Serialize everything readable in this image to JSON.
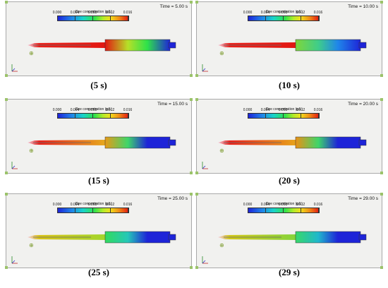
{
  "legend": {
    "title": "Dye concentration (g/L)",
    "ticks": [
      "0.000",
      "0.004",
      "0.008",
      "0.012",
      "0.016"
    ]
  },
  "panels": [
    {
      "time": "Time = 5.00 s",
      "caption": "(5 s)",
      "nozzle": "#e8201a",
      "left": "#e21812",
      "midA": "#b6e028",
      "midB": "#2ee24a",
      "right": "#e21812"
    },
    {
      "time": "Time = 10.00 s",
      "caption": "(10 s)",
      "nozzle": "#e8201a",
      "left": "#7ed63a",
      "midA": "#3fcd8a",
      "midB": "#1f86ea",
      "right": "#e21812"
    },
    {
      "time": "Time = 15.00 s",
      "caption": "(15 s)",
      "nozzle": "#e8201a",
      "left": "#e79a18",
      "midA": "#3ed66a",
      "midB": "#1e24d8",
      "right": "#e6a81e"
    },
    {
      "time": "Time = 20.00 s",
      "caption": "(20 s)",
      "nozzle": "#e8201a",
      "left": "#ea9016",
      "midA": "#3ed66a",
      "midB": "#1e24d8",
      "right": "#e7a21a"
    },
    {
      "time": "Time = 25.00 s",
      "caption": "(25 s)",
      "nozzle": "#d9c418",
      "left": "#32da5e",
      "midA": "#26c8b8",
      "midB": "#1e24d8",
      "right": "#a3d62c"
    },
    {
      "time": "Time = 29.00 s",
      "caption": "(29 s)",
      "nozzle": "#d2c81a",
      "left": "#38d86a",
      "midA": "#20b7cc",
      "midB": "#1e24d8",
      "right": "#85d43a"
    }
  ]
}
